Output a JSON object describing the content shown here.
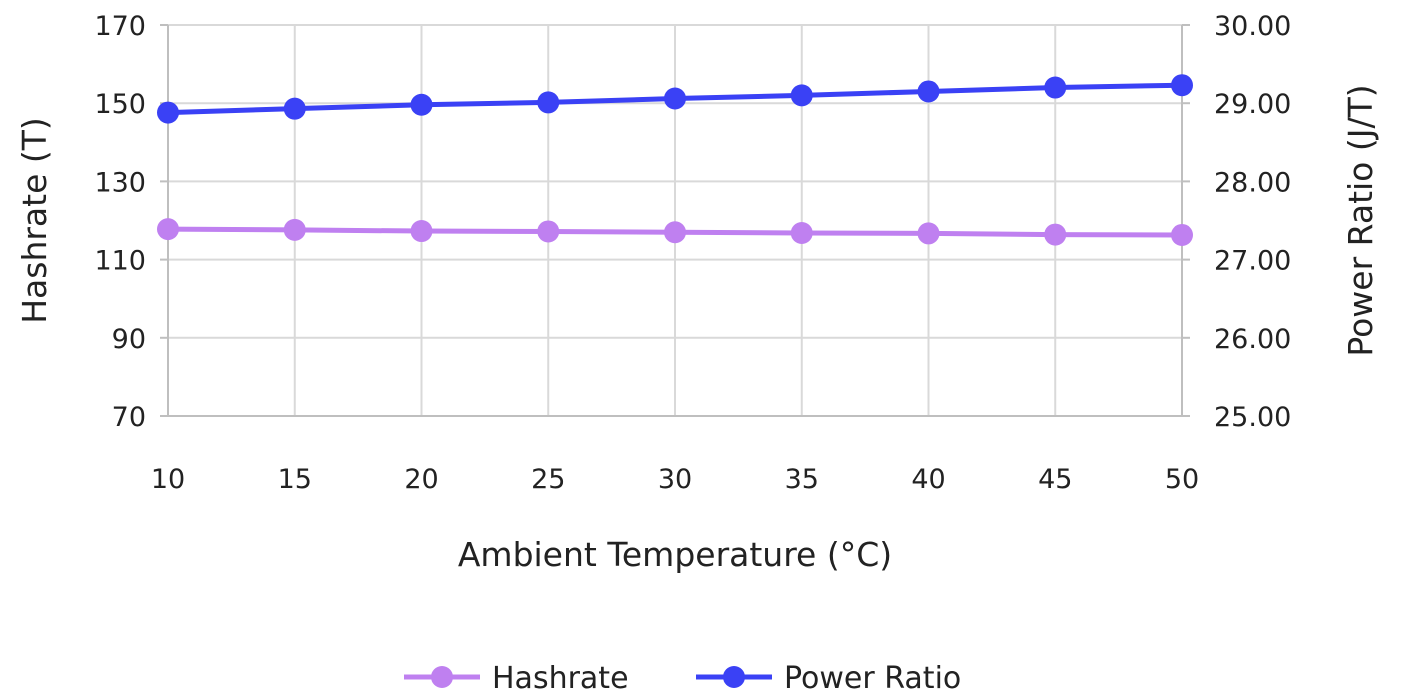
{
  "chart_data": {
    "type": "line",
    "title": "",
    "xlabel": "Ambient Temperature (°C)",
    "ylabel": "Hashrate (T)",
    "y2label": "Power Ratio (J/T)",
    "x": [
      10,
      15,
      20,
      25,
      30,
      35,
      40,
      45,
      50
    ],
    "xticks": [
      "10",
      "15",
      "20",
      "25",
      "30",
      "35",
      "40",
      "45",
      "50"
    ],
    "ylim": [
      70,
      170
    ],
    "yticks": [
      "70",
      "90",
      "110",
      "130",
      "150",
      "170"
    ],
    "y2lim": [
      25,
      30
    ],
    "y2ticks": [
      "25.00",
      "26.00",
      "27.00",
      "28.00",
      "29.00",
      "30.00"
    ],
    "grid": true,
    "legend_position": "bottom",
    "series": [
      {
        "name": "Hashrate",
        "axis": "left",
        "color": "#bf80f0",
        "values": [
          117.8,
          117.6,
          117.3,
          117.2,
          117.0,
          116.8,
          116.7,
          116.4,
          116.3
        ]
      },
      {
        "name": "Power Ratio",
        "axis": "right",
        "color": "#3a41f5",
        "values": [
          28.88,
          28.93,
          28.98,
          29.01,
          29.06,
          29.1,
          29.15,
          29.2,
          29.23
        ]
      }
    ]
  }
}
